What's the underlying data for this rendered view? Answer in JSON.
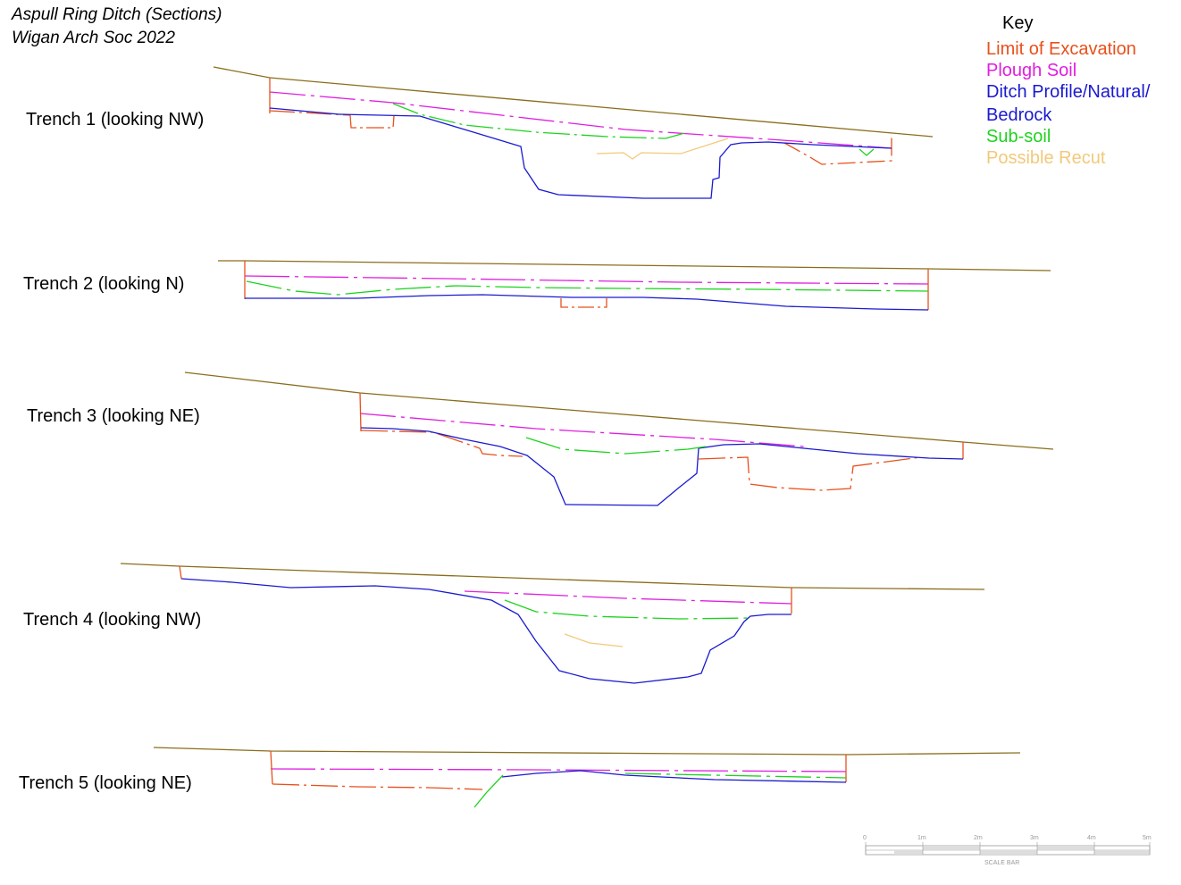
{
  "title": {
    "line1": "Aspull Ring Ditch (Sections)",
    "line2": "Wigan Arch Soc 2022"
  },
  "key": {
    "heading": "Key",
    "items": [
      {
        "label": "Limit of Excavation",
        "color": "#e8501c"
      },
      {
        "label": "Plough Soil",
        "color": "#e01ee0"
      },
      {
        "label": "Ditch Profile/Natural/",
        "color": "#1a1ad0"
      },
      {
        "label": "Bedrock",
        "color": "#1a1ad0"
      },
      {
        "label": "Sub-soil",
        "color": "#1ed21e"
      },
      {
        "label": "Possible Recut",
        "color": "#f2c97a"
      }
    ]
  },
  "ground_color": "#8a6d1c",
  "trenches": [
    {
      "label": "Trench 1 (looking NW)"
    },
    {
      "label": "Trench 2 (looking N)"
    },
    {
      "label": "Trench 3 (looking NE)"
    },
    {
      "label": "Trench 4 (looking NW)"
    },
    {
      "label": "Trench 5 (looking NE)"
    }
  ],
  "scale_bar": {
    "ticks": [
      "0",
      "1m",
      "2m",
      "3m",
      "4m",
      "5m"
    ],
    "caption": "SCALE BAR"
  }
}
